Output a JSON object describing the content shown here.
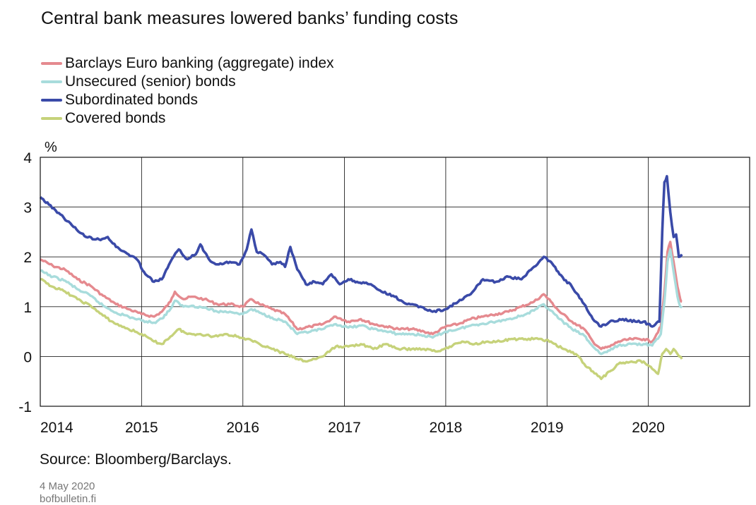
{
  "chart_data": {
    "type": "line",
    "title": "Central bank measures lowered banks’ funding costs",
    "ylabel": "%",
    "xlabel": "",
    "ylim": [
      -1,
      4
    ],
    "yticks": [
      "-1",
      "0",
      "1",
      "2",
      "3",
      "4"
    ],
    "xlim": [
      "2014-01-01",
      "2020-12-31"
    ],
    "xticks": [
      {
        "label": "2014",
        "x": "2014-01-01"
      },
      {
        "label": "2015",
        "x": "2015-01-01"
      },
      {
        "label": "2016",
        "x": "2016-01-01"
      },
      {
        "label": "2017",
        "x": "2017-01-01"
      },
      {
        "label": "2018",
        "x": "2018-01-01"
      },
      {
        "label": "2019",
        "x": "2019-01-01"
      },
      {
        "label": "2020",
        "x": "2020-01-01"
      }
    ],
    "grid": true,
    "legend_position": "top-left",
    "series": [
      {
        "name": "Barclays Euro banking (aggregate) index",
        "color": "#e58a8f",
        "points": [
          [
            "2014-01-01",
            1.95
          ],
          [
            "2014-02-15",
            1.82
          ],
          [
            "2014-04-01",
            1.74
          ],
          [
            "2014-05-15",
            1.55
          ],
          [
            "2014-07-01",
            1.42
          ],
          [
            "2014-08-15",
            1.22
          ],
          [
            "2014-10-01",
            1.05
          ],
          [
            "2014-11-15",
            0.95
          ],
          [
            "2015-01-01",
            0.85
          ],
          [
            "2015-02-15",
            0.8
          ],
          [
            "2015-03-15",
            0.9
          ],
          [
            "2015-04-15",
            1.1
          ],
          [
            "2015-05-01",
            1.3
          ],
          [
            "2015-06-01",
            1.15
          ],
          [
            "2015-07-01",
            1.2
          ],
          [
            "2015-08-15",
            1.15
          ],
          [
            "2015-10-01",
            1.05
          ],
          [
            "2015-11-15",
            1.05
          ],
          [
            "2016-01-01",
            1.0
          ],
          [
            "2016-02-01",
            1.15
          ],
          [
            "2016-03-01",
            1.05
          ],
          [
            "2016-04-15",
            0.95
          ],
          [
            "2016-06-01",
            0.85
          ],
          [
            "2016-07-15",
            0.55
          ],
          [
            "2016-09-01",
            0.6
          ],
          [
            "2016-10-15",
            0.65
          ],
          [
            "2016-12-01",
            0.8
          ],
          [
            "2017-01-15",
            0.7
          ],
          [
            "2017-03-01",
            0.75
          ],
          [
            "2017-04-15",
            0.65
          ],
          [
            "2017-06-01",
            0.6
          ],
          [
            "2017-07-15",
            0.55
          ],
          [
            "2017-09-01",
            0.55
          ],
          [
            "2017-10-15",
            0.5
          ],
          [
            "2017-11-15",
            0.45
          ],
          [
            "2018-01-01",
            0.6
          ],
          [
            "2018-02-15",
            0.65
          ],
          [
            "2018-04-01",
            0.75
          ],
          [
            "2018-05-15",
            0.8
          ],
          [
            "2018-07-01",
            0.85
          ],
          [
            "2018-08-15",
            0.9
          ],
          [
            "2018-10-01",
            1.0
          ],
          [
            "2018-11-15",
            1.1
          ],
          [
            "2018-12-20",
            1.25
          ],
          [
            "2019-01-15",
            1.1
          ],
          [
            "2019-02-15",
            0.9
          ],
          [
            "2019-04-01",
            0.7
          ],
          [
            "2019-05-15",
            0.55
          ],
          [
            "2019-06-15",
            0.3
          ],
          [
            "2019-07-15",
            0.15
          ],
          [
            "2019-08-15",
            0.2
          ],
          [
            "2019-09-15",
            0.3
          ],
          [
            "2019-11-01",
            0.35
          ],
          [
            "2019-12-15",
            0.35
          ],
          [
            "2020-01-15",
            0.3
          ],
          [
            "2020-02-15",
            0.6
          ],
          [
            "2020-02-28",
            1.3
          ],
          [
            "2020-03-10",
            2.1
          ],
          [
            "2020-03-20",
            2.3
          ],
          [
            "2020-04-01",
            1.9
          ],
          [
            "2020-04-15",
            1.4
          ],
          [
            "2020-04-25",
            1.15
          ],
          [
            "2020-05-01",
            1.1
          ]
        ]
      },
      {
        "name": "Unsecured (senior) bonds",
        "color": "#a8dcdc",
        "points": [
          [
            "2014-01-01",
            1.72
          ],
          [
            "2014-02-15",
            1.6
          ],
          [
            "2014-04-01",
            1.52
          ],
          [
            "2014-05-15",
            1.35
          ],
          [
            "2014-07-01",
            1.22
          ],
          [
            "2014-08-15",
            1.02
          ],
          [
            "2014-10-01",
            0.88
          ],
          [
            "2014-11-15",
            0.8
          ],
          [
            "2015-01-01",
            0.72
          ],
          [
            "2015-02-15",
            0.68
          ],
          [
            "2015-03-15",
            0.76
          ],
          [
            "2015-04-15",
            0.95
          ],
          [
            "2015-05-01",
            1.12
          ],
          [
            "2015-06-01",
            1.0
          ],
          [
            "2015-07-01",
            1.02
          ],
          [
            "2015-08-15",
            0.98
          ],
          [
            "2015-10-01",
            0.9
          ],
          [
            "2015-11-15",
            0.9
          ],
          [
            "2016-01-01",
            0.85
          ],
          [
            "2016-02-01",
            0.95
          ],
          [
            "2016-03-01",
            0.88
          ],
          [
            "2016-04-15",
            0.78
          ],
          [
            "2016-06-01",
            0.7
          ],
          [
            "2016-07-15",
            0.45
          ],
          [
            "2016-09-01",
            0.5
          ],
          [
            "2016-10-15",
            0.55
          ],
          [
            "2016-12-01",
            0.65
          ],
          [
            "2017-01-15",
            0.58
          ],
          [
            "2017-03-01",
            0.62
          ],
          [
            "2017-04-15",
            0.55
          ],
          [
            "2017-06-01",
            0.5
          ],
          [
            "2017-07-15",
            0.45
          ],
          [
            "2017-09-01",
            0.45
          ],
          [
            "2017-10-15",
            0.42
          ],
          [
            "2017-11-15",
            0.38
          ],
          [
            "2018-01-01",
            0.5
          ],
          [
            "2018-02-15",
            0.55
          ],
          [
            "2018-04-01",
            0.62
          ],
          [
            "2018-05-15",
            0.66
          ],
          [
            "2018-07-01",
            0.7
          ],
          [
            "2018-08-15",
            0.75
          ],
          [
            "2018-10-01",
            0.82
          ],
          [
            "2018-11-15",
            0.92
          ],
          [
            "2018-12-20",
            1.05
          ],
          [
            "2019-01-15",
            0.92
          ],
          [
            "2019-02-15",
            0.75
          ],
          [
            "2019-04-01",
            0.55
          ],
          [
            "2019-05-15",
            0.42
          ],
          [
            "2019-06-15",
            0.2
          ],
          [
            "2019-07-15",
            0.05
          ],
          [
            "2019-08-15",
            0.12
          ],
          [
            "2019-09-15",
            0.22
          ],
          [
            "2019-11-01",
            0.25
          ],
          [
            "2019-12-15",
            0.25
          ],
          [
            "2020-01-15",
            0.22
          ],
          [
            "2020-02-15",
            0.45
          ],
          [
            "2020-02-28",
            1.1
          ],
          [
            "2020-03-10",
            1.9
          ],
          [
            "2020-03-20",
            2.15
          ],
          [
            "2020-04-01",
            1.7
          ],
          [
            "2020-04-15",
            1.2
          ],
          [
            "2020-04-25",
            1.0
          ],
          [
            "2020-05-01",
            0.98
          ]
        ]
      },
      {
        "name": "Subordinated bonds",
        "color": "#3a4aa8",
        "points": [
          [
            "2014-01-01",
            3.2
          ],
          [
            "2014-02-01",
            3.05
          ],
          [
            "2014-03-15",
            2.85
          ],
          [
            "2014-05-01",
            2.6
          ],
          [
            "2014-06-15",
            2.4
          ],
          [
            "2014-08-01",
            2.35
          ],
          [
            "2014-09-01",
            2.4
          ],
          [
            "2014-10-01",
            2.2
          ],
          [
            "2014-11-15",
            2.05
          ],
          [
            "2014-12-15",
            1.95
          ],
          [
            "2015-01-15",
            1.65
          ],
          [
            "2015-02-15",
            1.5
          ],
          [
            "2015-03-15",
            1.55
          ],
          [
            "2015-04-15",
            1.9
          ],
          [
            "2015-05-15",
            2.15
          ],
          [
            "2015-06-15",
            1.95
          ],
          [
            "2015-07-15",
            2.05
          ],
          [
            "2015-08-01",
            2.25
          ],
          [
            "2015-09-01",
            1.95
          ],
          [
            "2015-10-01",
            1.85
          ],
          [
            "2015-11-15",
            1.9
          ],
          [
            "2015-12-20",
            1.85
          ],
          [
            "2016-01-15",
            2.15
          ],
          [
            "2016-02-01",
            2.55
          ],
          [
            "2016-02-20",
            2.1
          ],
          [
            "2016-03-15",
            2.05
          ],
          [
            "2016-04-15",
            1.85
          ],
          [
            "2016-05-15",
            1.9
          ],
          [
            "2016-06-01",
            1.8
          ],
          [
            "2016-06-20",
            2.2
          ],
          [
            "2016-07-15",
            1.75
          ],
          [
            "2016-08-15",
            1.45
          ],
          [
            "2016-09-15",
            1.5
          ],
          [
            "2016-10-15",
            1.45
          ],
          [
            "2016-11-15",
            1.65
          ],
          [
            "2016-12-15",
            1.45
          ],
          [
            "2017-01-15",
            1.55
          ],
          [
            "2017-02-15",
            1.5
          ],
          [
            "2017-04-01",
            1.45
          ],
          [
            "2017-05-15",
            1.3
          ],
          [
            "2017-07-01",
            1.2
          ],
          [
            "2017-08-15",
            1.05
          ],
          [
            "2017-10-01",
            1.0
          ],
          [
            "2017-11-15",
            0.9
          ],
          [
            "2018-01-01",
            0.95
          ],
          [
            "2018-02-15",
            1.1
          ],
          [
            "2018-04-01",
            1.25
          ],
          [
            "2018-05-15",
            1.55
          ],
          [
            "2018-07-01",
            1.5
          ],
          [
            "2018-08-15",
            1.6
          ],
          [
            "2018-10-01",
            1.55
          ],
          [
            "2018-11-15",
            1.8
          ],
          [
            "2018-12-20",
            2.0
          ],
          [
            "2019-01-15",
            1.9
          ],
          [
            "2019-02-15",
            1.65
          ],
          [
            "2019-04-01",
            1.4
          ],
          [
            "2019-05-15",
            1.05
          ],
          [
            "2019-06-15",
            0.75
          ],
          [
            "2019-07-15",
            0.6
          ],
          [
            "2019-08-15",
            0.7
          ],
          [
            "2019-10-01",
            0.75
          ],
          [
            "2019-11-15",
            0.7
          ],
          [
            "2019-12-15",
            0.7
          ],
          [
            "2020-01-15",
            0.6
          ],
          [
            "2020-02-10",
            0.7
          ],
          [
            "2020-02-20",
            2.5
          ],
          [
            "2020-02-28",
            3.5
          ],
          [
            "2020-03-08",
            3.62
          ],
          [
            "2020-03-20",
            2.9
          ],
          [
            "2020-04-01",
            2.4
          ],
          [
            "2020-04-10",
            2.45
          ],
          [
            "2020-04-20",
            2.0
          ],
          [
            "2020-05-01",
            2.05
          ]
        ]
      },
      {
        "name": "Covered bonds",
        "color": "#c6d27a",
        "points": [
          [
            "2014-01-01",
            1.55
          ],
          [
            "2014-02-15",
            1.4
          ],
          [
            "2014-04-01",
            1.3
          ],
          [
            "2014-05-15",
            1.15
          ],
          [
            "2014-07-01",
            1.02
          ],
          [
            "2014-08-15",
            0.82
          ],
          [
            "2014-10-01",
            0.65
          ],
          [
            "2014-11-15",
            0.55
          ],
          [
            "2015-01-01",
            0.45
          ],
          [
            "2015-02-15",
            0.3
          ],
          [
            "2015-03-15",
            0.25
          ],
          [
            "2015-04-15",
            0.4
          ],
          [
            "2015-05-15",
            0.55
          ],
          [
            "2015-06-15",
            0.45
          ],
          [
            "2015-08-01",
            0.45
          ],
          [
            "2015-09-15",
            0.4
          ],
          [
            "2015-11-01",
            0.45
          ],
          [
            "2015-12-15",
            0.4
          ],
          [
            "2016-01-15",
            0.35
          ],
          [
            "2016-03-01",
            0.25
          ],
          [
            "2016-04-15",
            0.15
          ],
          [
            "2016-06-01",
            0.05
          ],
          [
            "2016-07-15",
            -0.05
          ],
          [
            "2016-08-15",
            -0.1
          ],
          [
            "2016-09-15",
            -0.05
          ],
          [
            "2016-10-15",
            0.0
          ],
          [
            "2016-12-01",
            0.2
          ],
          [
            "2017-01-15",
            0.2
          ],
          [
            "2017-03-01",
            0.25
          ],
          [
            "2017-04-15",
            0.15
          ],
          [
            "2017-06-01",
            0.25
          ],
          [
            "2017-07-15",
            0.15
          ],
          [
            "2017-09-01",
            0.15
          ],
          [
            "2017-10-15",
            0.15
          ],
          [
            "2017-12-01",
            0.1
          ],
          [
            "2018-01-15",
            0.2
          ],
          [
            "2018-03-01",
            0.3
          ],
          [
            "2018-04-15",
            0.25
          ],
          [
            "2018-06-01",
            0.3
          ],
          [
            "2018-07-15",
            0.3
          ],
          [
            "2018-09-01",
            0.35
          ],
          [
            "2018-10-15",
            0.35
          ],
          [
            "2018-12-01",
            0.35
          ],
          [
            "2019-01-15",
            0.3
          ],
          [
            "2019-03-01",
            0.15
          ],
          [
            "2019-04-15",
            0.05
          ],
          [
            "2019-05-15",
            -0.15
          ],
          [
            "2019-06-15",
            -0.3
          ],
          [
            "2019-07-15",
            -0.45
          ],
          [
            "2019-08-15",
            -0.3
          ],
          [
            "2019-09-15",
            -0.15
          ],
          [
            "2019-11-01",
            -0.1
          ],
          [
            "2019-12-15",
            -0.1
          ],
          [
            "2020-01-15",
            -0.25
          ],
          [
            "2020-02-05",
            -0.35
          ],
          [
            "2020-02-20",
            0.05
          ],
          [
            "2020-03-05",
            0.15
          ],
          [
            "2020-03-20",
            0.05
          ],
          [
            "2020-04-01",
            0.15
          ],
          [
            "2020-04-15",
            0.05
          ],
          [
            "2020-05-01",
            -0.05
          ]
        ]
      }
    ]
  },
  "footer": {
    "source": "Source: Bloomberg/Barclays.",
    "date": "4 May 2020",
    "site": "bofbulletin.fi"
  }
}
